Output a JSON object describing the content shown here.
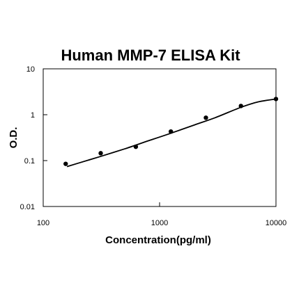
{
  "chart_data": {
    "type": "scatter",
    "title": "Human MMP-7 ELISA Kit",
    "xlabel": "Concentration(pg/ml)",
    "ylabel": "O.D.",
    "x_scale": "log",
    "y_scale": "log",
    "xlim": [
      100,
      10000
    ],
    "ylim": [
      0.01,
      10
    ],
    "x_ticks": [
      100,
      1000,
      10000
    ],
    "x_tick_labels": [
      "100",
      "1000",
      "10000"
    ],
    "y_ticks": [
      0.01,
      0.1,
      1,
      10
    ],
    "y_tick_labels": [
      "0.01",
      "0.1",
      "1",
      "10"
    ],
    "grid": false,
    "legend": "none",
    "series": [
      {
        "x": [
          156,
          312,
          625,
          1250,
          2500,
          5000,
          10000
        ],
        "y": [
          0.085,
          0.145,
          0.2,
          0.43,
          0.86,
          1.55,
          2.2
        ]
      }
    ],
    "fit_curve": {
      "x": [
        160,
        200,
        300,
        500,
        800,
        1200,
        2000,
        3000,
        5000,
        7000,
        10000
      ],
      "y": [
        0.074,
        0.088,
        0.12,
        0.18,
        0.27,
        0.38,
        0.6,
        0.86,
        1.45,
        1.9,
        2.2
      ]
    }
  }
}
